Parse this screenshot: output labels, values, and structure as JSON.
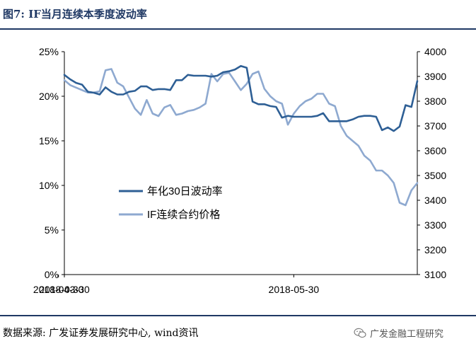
{
  "header": {
    "title": "图7: IF当月连续本季度波动率"
  },
  "footer": {
    "source": "数据来源: 广发证券发展研究中心, wind资讯",
    "watermark": "广发金融工程研究",
    "watermark_icon": "wechat-icon"
  },
  "chart_data": {
    "type": "line",
    "title": "",
    "xlabel": "",
    "ylabel": "",
    "y2label": "",
    "x_ticks": [
      "2018-03-30",
      "2018-04-30",
      "2018-05-30"
    ],
    "ylim": [
      0,
      25
    ],
    "y_ticks": [
      "0%",
      "5%",
      "10%",
      "15%",
      "20%",
      "25%"
    ],
    "y2lim": [
      3100,
      4000
    ],
    "y2_ticks": [
      "3100",
      "3200",
      "3300",
      "3400",
      "3500",
      "3600",
      "3700",
      "3800",
      "3900",
      "4000"
    ],
    "legend_position": "center-left",
    "grid": false,
    "x": [
      "2018-03-30",
      "2018-04-02",
      "2018-04-03",
      "2018-04-04",
      "2018-04-09",
      "2018-04-10",
      "2018-04-11",
      "2018-04-12",
      "2018-04-13",
      "2018-04-16",
      "2018-04-17",
      "2018-04-18",
      "2018-04-19",
      "2018-04-20",
      "2018-04-23",
      "2018-04-24",
      "2018-04-25",
      "2018-04-26",
      "2018-04-27",
      "2018-05-02",
      "2018-05-03",
      "2018-05-04",
      "2018-05-07",
      "2018-05-08",
      "2018-05-09",
      "2018-05-10",
      "2018-05-11",
      "2018-05-14",
      "2018-05-15",
      "2018-05-16",
      "2018-05-17",
      "2018-05-18",
      "2018-05-21",
      "2018-05-22",
      "2018-05-23",
      "2018-05-24",
      "2018-05-25",
      "2018-05-28",
      "2018-05-29",
      "2018-05-30",
      "2018-05-31",
      "2018-06-01",
      "2018-06-04",
      "2018-06-05",
      "2018-06-06",
      "2018-06-07",
      "2018-06-08",
      "2018-06-11",
      "2018-06-12",
      "2018-06-13",
      "2018-06-14",
      "2018-06-15",
      "2018-06-19",
      "2018-06-20",
      "2018-06-21",
      "2018-06-22",
      "2018-06-25",
      "2018-06-26",
      "2018-06-27",
      "2018-06-28",
      "2018-06-29"
    ],
    "series": [
      {
        "name": "年化30日波动率",
        "axis": "left",
        "color": "#2e5f95",
        "values": [
          22.4,
          21.9,
          21.5,
          21.3,
          20.5,
          20.4,
          20.2,
          21.0,
          20.5,
          20.2,
          20.2,
          20.5,
          20.6,
          21.1,
          21.1,
          20.7,
          20.8,
          20.8,
          20.7,
          21.8,
          21.8,
          22.4,
          22.3,
          22.3,
          22.3,
          22.2,
          22.3,
          22.7,
          22.8,
          23.0,
          23.4,
          23.2,
          19.4,
          19.1,
          19.1,
          18.9,
          18.8,
          17.6,
          17.8,
          17.7,
          17.7,
          17.7,
          17.7,
          17.8,
          18.1,
          17.2,
          17.2,
          17.2,
          17.2,
          17.4,
          17.7,
          17.8,
          17.8,
          17.7,
          16.2,
          16.5,
          16.1,
          16.6,
          19.0,
          18.8,
          21.7
        ]
      },
      {
        "name": "IF连续合约价格",
        "axis": "right",
        "color": "#8ea9d0",
        "values": [
          3885,
          3865,
          3855,
          3845,
          3835,
          3835,
          3840,
          3925,
          3930,
          3875,
          3860,
          3815,
          3770,
          3745,
          3805,
          3750,
          3740,
          3775,
          3785,
          3745,
          3750,
          3760,
          3765,
          3775,
          3790,
          3910,
          3880,
          3910,
          3915,
          3880,
          3845,
          3870,
          3910,
          3920,
          3850,
          3820,
          3800,
          3790,
          3705,
          3750,
          3780,
          3800,
          3810,
          3830,
          3830,
          3790,
          3780,
          3700,
          3660,
          3640,
          3620,
          3580,
          3560,
          3520,
          3520,
          3500,
          3470,
          3390,
          3380,
          3440,
          3470
        ]
      }
    ]
  }
}
